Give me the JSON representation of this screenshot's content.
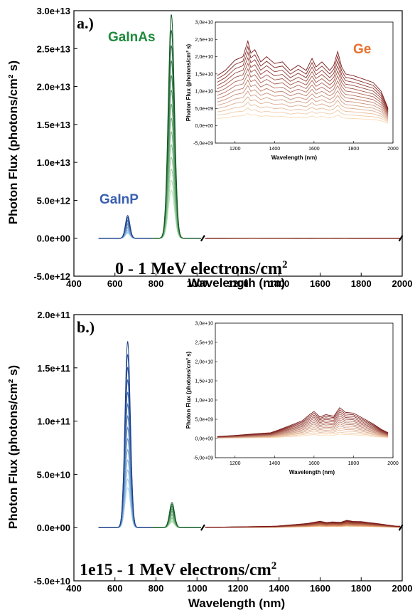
{
  "colors": {
    "galnp": "#1f5fa8",
    "galnas": "#1f8a3c",
    "ge": "#e8722e",
    "ge_dark": "#7a1a1a",
    "ge_light": "#fbd9b3"
  },
  "chart_data": [
    {
      "type": "line",
      "panel_label": "a.)",
      "annotation": "0 - 1 MeV electrons/cm",
      "annotation_sup": "2",
      "xlabel": "Wavelength (nm)",
      "ylabel": "Photon Flux (photons/cm² s)",
      "xlim": [
        400,
        2000
      ],
      "ylim": [
        -5000000000000.0,
        30000000000000.0
      ],
      "xticks": [
        "400",
        "600",
        "800",
        "1000",
        "1200",
        "1400",
        "1600",
        "1800",
        "2000"
      ],
      "yticks": [
        "-5.0e+12",
        "0.0e+00",
        "5.0e+12",
        "1.0e+13",
        "1.5e+13",
        "2.0e+13",
        "2.5e+13",
        "3.0e+13"
      ],
      "labels": {
        "galnp": "GaInP",
        "galnas": "GaInAs",
        "ge": "Ge"
      },
      "peaks": {
        "galnp": {
          "x": 662,
          "y": 3000000000000.0
        },
        "galnas": {
          "x": 875,
          "y": 29500000000000.0
        }
      },
      "inset": {
        "xlabel": "Wavelength (nm)",
        "ylabel": "Photon Flux (photons/cm² s)",
        "xlim": [
          1100,
          2000
        ],
        "ylim": [
          -5000000000.0,
          30000000000.0
        ],
        "xticks": [
          "1200",
          "1400",
          "1600",
          "1800",
          "2000"
        ],
        "yticks": [
          "-5,0e+09",
          "0,0e+00",
          "5,0e+09",
          "1,0e+10",
          "1,5e+10",
          "2,0e+10",
          "2,5e+10",
          "3,0e+10"
        ],
        "max_series": {
          "x": [
            1110,
            1150,
            1200,
            1240,
            1265,
            1280,
            1300,
            1330,
            1360,
            1400,
            1440,
            1480,
            1520,
            1560,
            1590,
            1610,
            1640,
            1680,
            1700,
            1720,
            1740,
            1760,
            1800,
            1850,
            1900,
            1940,
            1975
          ],
          "y": [
            14500000000.0,
            16000000000.0,
            19000000000.0,
            20000000000.0,
            24500000000.0,
            21000000000.0,
            22000000000.0,
            18500000000.0,
            20000000000.0,
            18000000000.0,
            18500000000.0,
            16000000000.0,
            17500000000.0,
            16000000000.0,
            19500000000.0,
            17000000000.0,
            18500000000.0,
            16000000000.0,
            17500000000.0,
            21500000000.0,
            17000000000.0,
            15000000000.0,
            14500000000.0,
            13500000000.0,
            12500000000.0,
            10000000000.0,
            5000000000.0
          ]
        },
        "curve_count": 14
      }
    },
    {
      "type": "line",
      "panel_label": "b.)",
      "annotation": "1e15 - 1 MeV electrons/cm",
      "annotation_sup": "2",
      "xlabel": "Wavelength (nm)",
      "ylabel": "Photon Flux (photons/cm² s)",
      "xlim": [
        400,
        2000
      ],
      "ylim": [
        -50000000000.0,
        200000000000.0
      ],
      "xticks": [
        "400",
        "600",
        "800",
        "1000",
        "1200",
        "1400",
        "1600",
        "1800",
        "2000"
      ],
      "yticks": [
        "-5.0e+10",
        "0.0e+00",
        "5.0e+10",
        "1.0e+11",
        "1.5e+11",
        "2.0e+11"
      ],
      "peaks": {
        "galnp": {
          "x": 662,
          "y": 175000000000.0
        },
        "galnas": {
          "x": 878,
          "y": 23500000000.0
        }
      },
      "inset": {
        "xlabel": "Wavelength (nm)",
        "ylabel": "Photon Flux (photons/cm² s)",
        "xlim": [
          1100,
          2000
        ],
        "ylim": [
          -5000000000.0,
          30000000000.0
        ],
        "xticks": [
          "1200",
          "1400",
          "1600",
          "1800",
          "2000"
        ],
        "yticks": [
          "-5,0e+09",
          "0,0e+00",
          "5,0e+09",
          "1,0e+10",
          "1,5e+10",
          "2,0e+10",
          "2,5e+10",
          "3,0e+10"
        ],
        "max_series": {
          "x": [
            1110,
            1200,
            1300,
            1380,
            1420,
            1460,
            1500,
            1540,
            1580,
            1600,
            1630,
            1660,
            1700,
            1730,
            1760,
            1800,
            1850,
            1900,
            1940,
            1975
          ],
          "y": [
            500000000.0,
            800000000.0,
            1200000000.0,
            1500000000.0,
            2200000000.0,
            3000000000.0,
            3800000000.0,
            4600000000.0,
            6300000000.0,
            7000000000.0,
            5600000000.0,
            6200000000.0,
            5800000000.0,
            8000000000.0,
            6800000000.0,
            6600000000.0,
            5200000000.0,
            3800000000.0,
            2400000000.0,
            1500000000.0
          ]
        },
        "curve_count": 14
      }
    }
  ]
}
